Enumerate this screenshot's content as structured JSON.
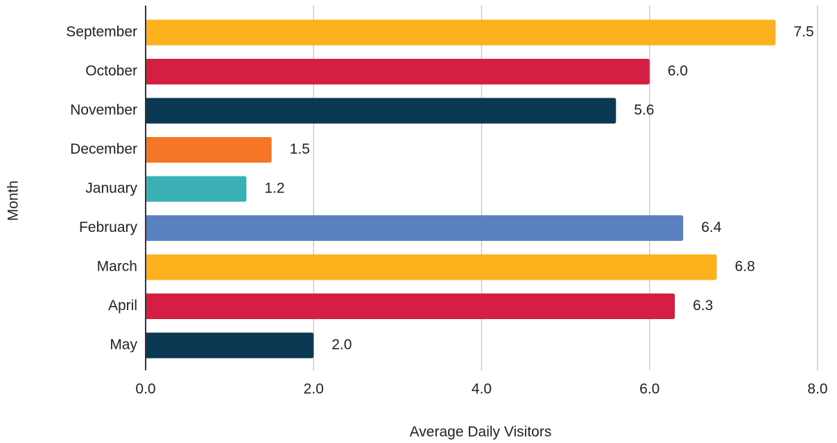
{
  "chart_data": {
    "type": "bar",
    "orientation": "horizontal",
    "categories": [
      "September",
      "October",
      "November",
      "December",
      "January",
      "February",
      "March",
      "April",
      "May"
    ],
    "values": [
      7.5,
      6.0,
      5.6,
      1.5,
      1.2,
      6.4,
      6.8,
      6.3,
      2.0
    ],
    "value_labels": [
      "7.5",
      "6.0",
      "5.6",
      "1.5",
      "1.2",
      "6.4",
      "6.8",
      "6.3",
      "2.0"
    ],
    "colors": [
      "#fbb21c",
      "#d41f43",
      "#0b3954",
      "#f47626",
      "#38b0b5",
      "#5a80bf",
      "#fbb21c",
      "#d41f43",
      "#0b3954"
    ],
    "xlabel": "Average Daily Visitors",
    "ylabel": "Month",
    "xlim": [
      0,
      8
    ],
    "xticks": [
      {
        "value": 0,
        "label": "0.0"
      },
      {
        "value": 2,
        "label": "2.0"
      },
      {
        "value": 4,
        "label": "4.0"
      },
      {
        "value": 6,
        "label": "6.0"
      },
      {
        "value": 8,
        "label": "8.0"
      }
    ],
    "grid": true
  }
}
